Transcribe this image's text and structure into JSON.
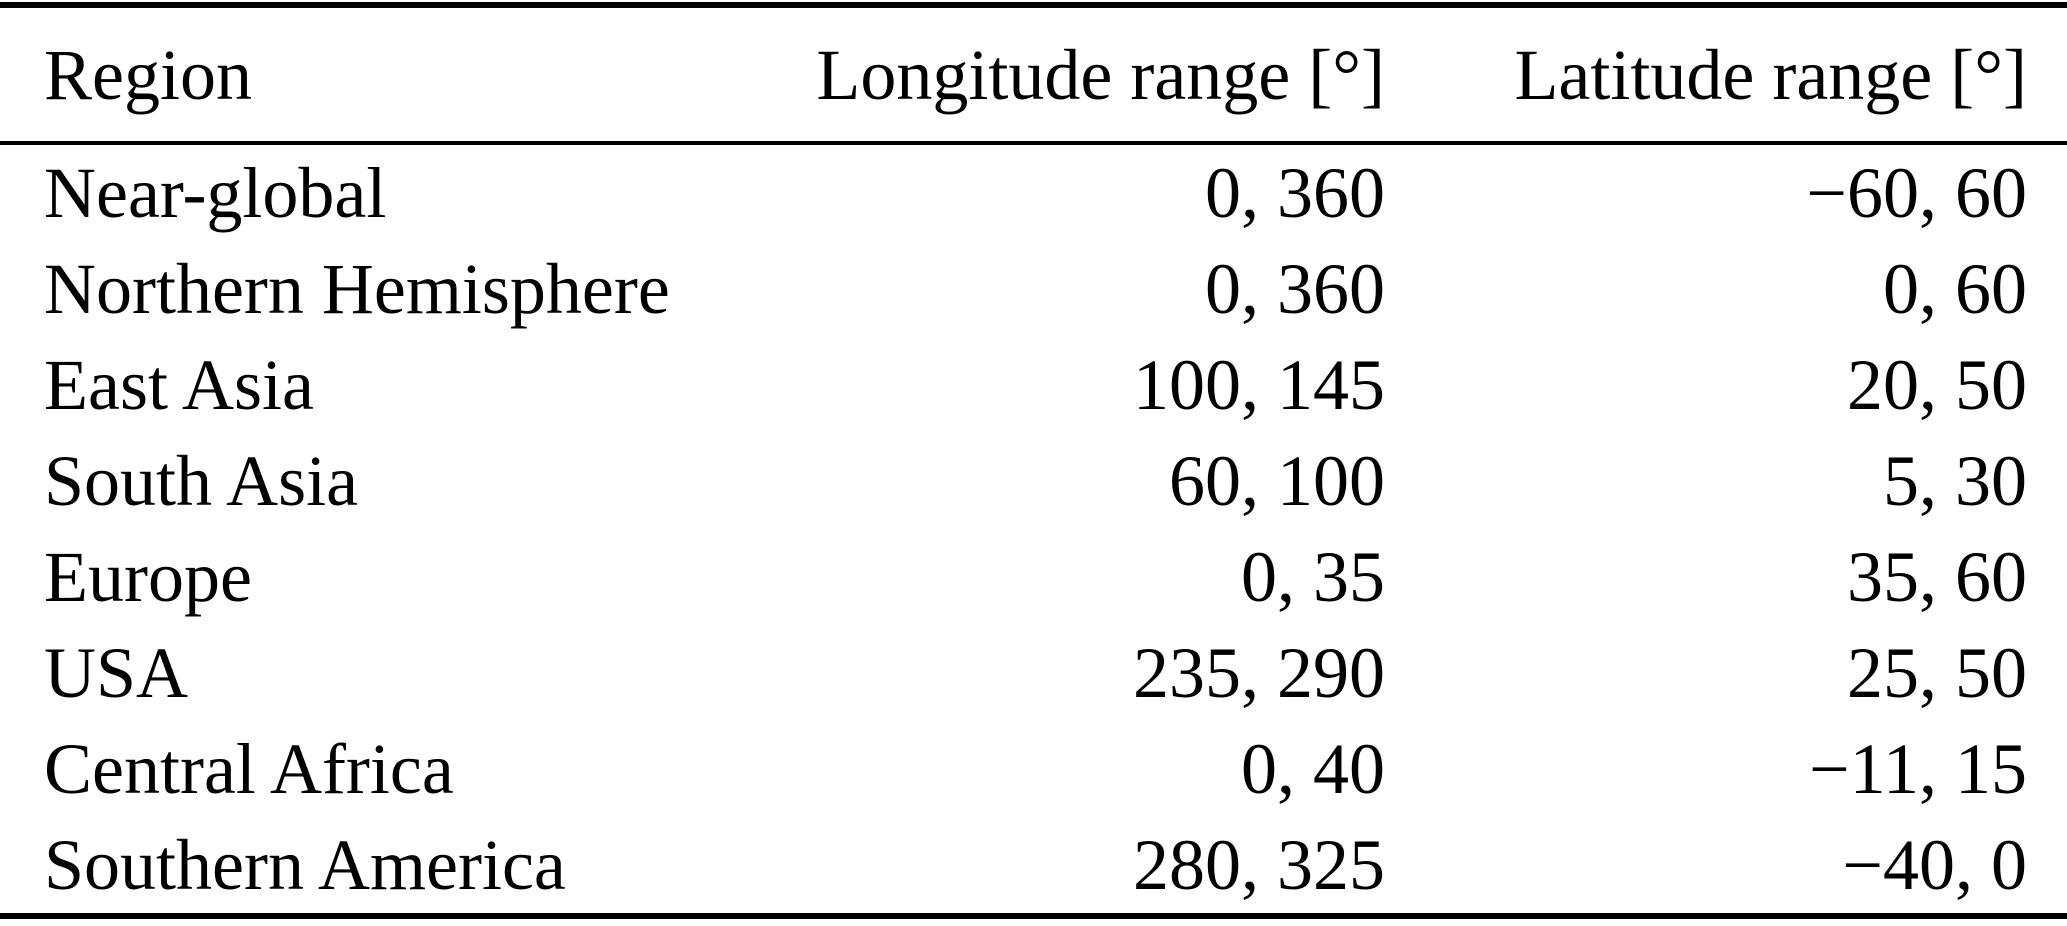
{
  "table": {
    "columns": {
      "region": "Region",
      "longitude": "Longitude range [°]",
      "latitude": "Latitude range [°]"
    },
    "rows": [
      {
        "region": "Near-global",
        "longitude": "0, 360",
        "latitude": "−60, 60"
      },
      {
        "region": "Northern Hemisphere",
        "longitude": "0, 360",
        "latitude": "0, 60"
      },
      {
        "region": "East Asia",
        "longitude": "100, 145",
        "latitude": "20, 50"
      },
      {
        "region": "South Asia",
        "longitude": "60, 100",
        "latitude": "5, 30"
      },
      {
        "region": "Europe",
        "longitude": "0, 35",
        "latitude": "35, 60"
      },
      {
        "region": "USA",
        "longitude": "235, 290",
        "latitude": "25, 50"
      },
      {
        "region": "Central Africa",
        "longitude": "0, 40",
        "latitude": "−11, 15"
      },
      {
        "region": "Southern America",
        "longitude": "280, 325",
        "latitude": "−40, 0"
      }
    ],
    "text_color": "#000000",
    "rule_color": "#000000",
    "background_color": "#ffffff"
  }
}
